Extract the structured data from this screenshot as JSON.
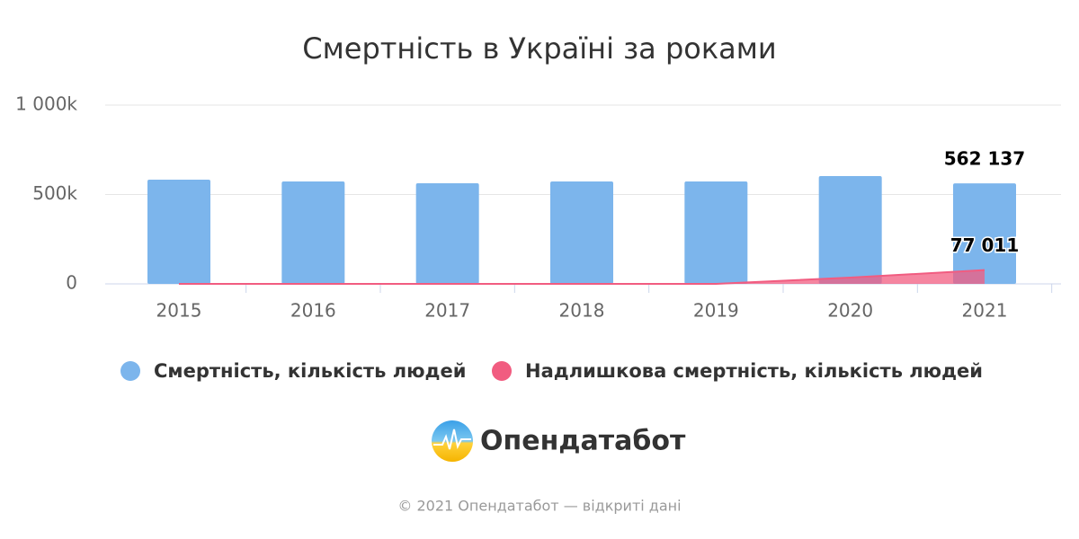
{
  "chart_data": {
    "type": "bar",
    "title": "Смертність в Україні за роками",
    "categories": [
      "2015",
      "2016",
      "2017",
      "2018",
      "2019",
      "2020",
      "2021"
    ],
    "series": [
      {
        "name": "Смертність, кількість людей",
        "type": "bar",
        "color": "#7cb5ec",
        "values": [
          583000,
          573000,
          563000,
          573000,
          573000,
          603000,
          562137
        ],
        "value_labels": [
          null,
          null,
          null,
          null,
          null,
          null,
          "562 137"
        ]
      },
      {
        "name": "Надлишкова смертність, кількість людей",
        "type": "area",
        "color": "#f15c80",
        "values": [
          0,
          0,
          0,
          0,
          0,
          35000,
          77011
        ],
        "value_labels": [
          null,
          null,
          null,
          null,
          null,
          null,
          "77 011"
        ]
      }
    ],
    "ylim": [
      0,
      1000000
    ],
    "yticks": [
      0,
      {
        "value": 500000,
        "label": "500k"
      },
      {
        "value": 1000000,
        "label": "1 000k"
      }
    ],
    "grid": true,
    "legend": "bottom"
  },
  "logo_text": "Опендатабот",
  "footer": "© 2021 Опендатабот — відкриті дані"
}
